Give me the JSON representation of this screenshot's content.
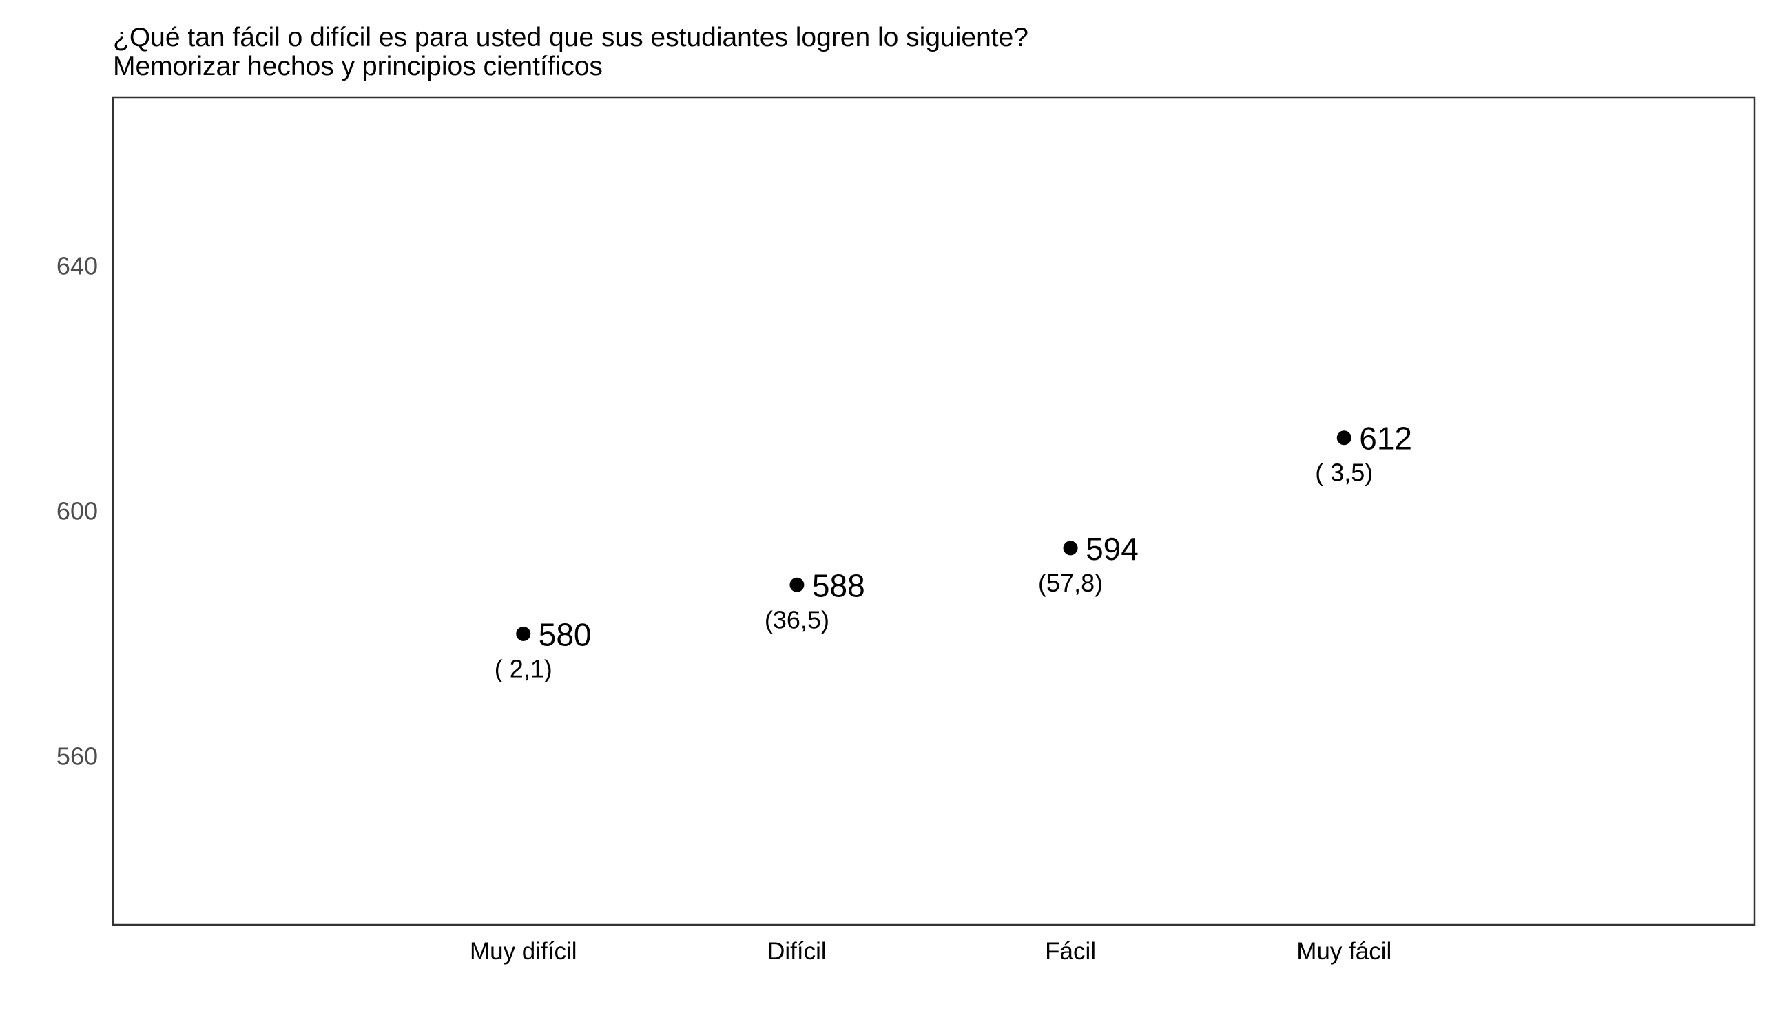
{
  "chart_data": {
    "type": "scatter",
    "title": "¿Qué tan fácil o difícil es para usted que sus estudiantes logren lo siguiente?",
    "subtitle": "Memorizar hechos y principios científicos",
    "xlabel": "",
    "ylabel": "",
    "categories": [
      "Muy difícil",
      "Difícil",
      "Fácil",
      "Muy fácil"
    ],
    "values": [
      580,
      588,
      594,
      612
    ],
    "value_labels": [
      "580",
      "588",
      "594",
      "612"
    ],
    "percent_labels": [
      "( 2,1)",
      "(36,5)",
      "(57,8)",
      "( 3,5)"
    ],
    "yticks": [
      560,
      600,
      640
    ],
    "ytick_labels": [
      "560",
      "600",
      "640"
    ],
    "ylim": [
      532.5,
      667.5
    ],
    "grid": false,
    "legend": "none",
    "point_color": "#000000",
    "frame_color": "#333333"
  }
}
